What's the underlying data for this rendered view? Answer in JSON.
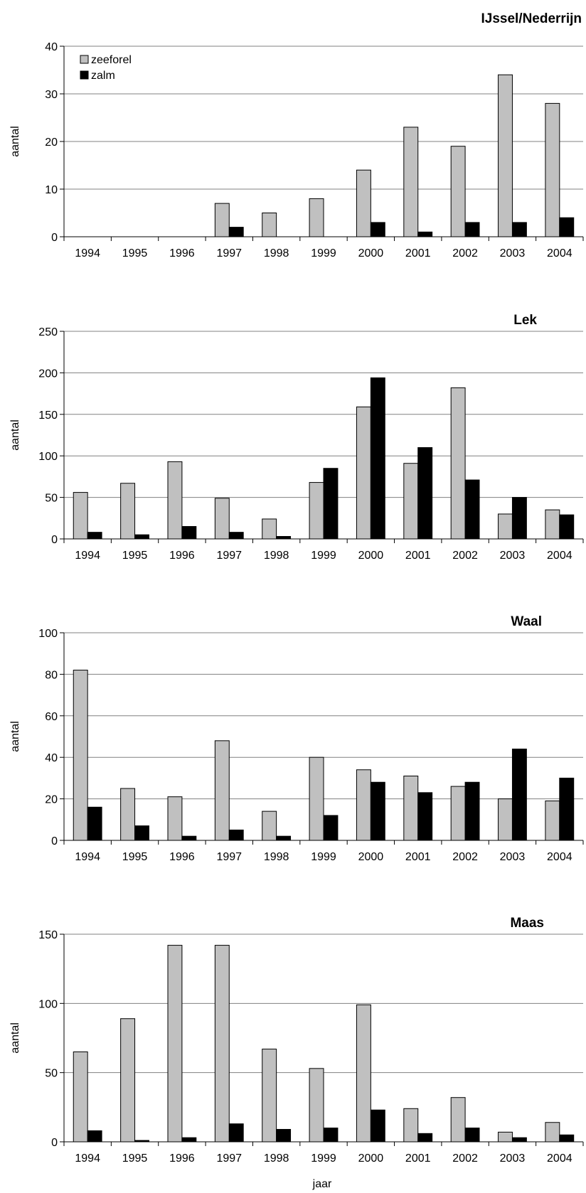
{
  "colors": {
    "zeeforel": "#c0c0c0",
    "zalm": "#000000",
    "grid": "#808080",
    "axis": "#000000"
  },
  "xlabel": "jaar",
  "chart_data": [
    {
      "type": "bar",
      "title": "IJssel/Nederrijn",
      "ylabel": "aantal",
      "ylim": [
        0,
        40
      ],
      "yticks": [
        0,
        10,
        20,
        30,
        40
      ],
      "categories": [
        "1994",
        "1995",
        "1996",
        "1997",
        "1998",
        "1999",
        "2000",
        "2001",
        "2002",
        "2003",
        "2004"
      ],
      "legend": "top-left",
      "series": [
        {
          "name": "zeeforel",
          "values": [
            0,
            0,
            0,
            7,
            5,
            8,
            14,
            23,
            19,
            34,
            28
          ]
        },
        {
          "name": "zalm",
          "values": [
            0,
            0,
            0,
            2,
            0,
            0,
            3,
            1,
            3,
            3,
            4
          ]
        }
      ]
    },
    {
      "type": "bar",
      "title": "Lek",
      "ylabel": "aantal",
      "ylim": [
        0,
        250
      ],
      "yticks": [
        0,
        50,
        100,
        150,
        200,
        250
      ],
      "categories": [
        "1994",
        "1995",
        "1996",
        "1997",
        "1998",
        "1999",
        "2000",
        "2001",
        "2002",
        "2003",
        "2004"
      ],
      "series": [
        {
          "name": "zeeforel",
          "values": [
            56,
            67,
            93,
            49,
            24,
            68,
            159,
            91,
            182,
            30,
            35
          ]
        },
        {
          "name": "zalm",
          "values": [
            8,
            5,
            15,
            8,
            3,
            85,
            194,
            110,
            71,
            50,
            29
          ]
        }
      ]
    },
    {
      "type": "bar",
      "title": "Waal",
      "ylabel": "aantal",
      "ylim": [
        0,
        100
      ],
      "yticks": [
        0,
        20,
        40,
        60,
        80,
        100
      ],
      "categories": [
        "1994",
        "1995",
        "1996",
        "1997",
        "1998",
        "1999",
        "2000",
        "2001",
        "2002",
        "2003",
        "2004"
      ],
      "series": [
        {
          "name": "zeeforel",
          "values": [
            82,
            25,
            21,
            48,
            14,
            40,
            34,
            31,
            26,
            20,
            19
          ]
        },
        {
          "name": "zalm",
          "values": [
            16,
            7,
            2,
            5,
            2,
            12,
            28,
            23,
            28,
            44,
            30
          ]
        }
      ]
    },
    {
      "type": "bar",
      "title": "Maas",
      "ylabel": "aantal",
      "ylim": [
        0,
        150
      ],
      "yticks": [
        0,
        50,
        100,
        150
      ],
      "categories": [
        "1994",
        "1995",
        "1996",
        "1997",
        "1998",
        "1999",
        "2000",
        "2001",
        "2002",
        "2003",
        "2004"
      ],
      "series": [
        {
          "name": "zeeforel",
          "values": [
            65,
            89,
            142,
            142,
            67,
            53,
            99,
            24,
            32,
            7,
            14
          ]
        },
        {
          "name": "zalm",
          "values": [
            8,
            1,
            3,
            13,
            9,
            10,
            23,
            6,
            10,
            3,
            5
          ]
        }
      ]
    }
  ]
}
